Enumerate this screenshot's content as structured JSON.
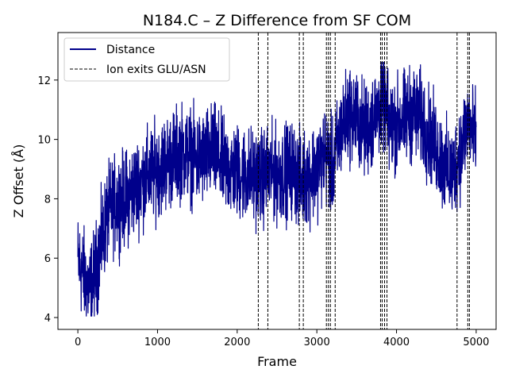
{
  "chart_data": {
    "type": "line",
    "title": "N184.C – Z Difference from SF COM",
    "xlabel": "Frame",
    "ylabel": "Z Offset (Å)",
    "xlim": [
      -250,
      5250
    ],
    "ylim": [
      3.6,
      13.6
    ],
    "xticks": [
      0,
      1000,
      2000,
      3000,
      4000,
      5000
    ],
    "yticks": [
      4,
      6,
      8,
      10,
      12
    ],
    "grid": false,
    "legend_position": "upper-left",
    "series": [
      {
        "name": "Distance",
        "color": "#00008b",
        "style": "solid",
        "trend_points": [
          [
            0,
            5.9
          ],
          [
            50,
            5.6
          ],
          [
            100,
            5.2
          ],
          [
            150,
            4.9
          ],
          [
            200,
            5.3
          ],
          [
            250,
            5.9
          ],
          [
            300,
            6.6
          ],
          [
            350,
            7.2
          ],
          [
            400,
            7.6
          ],
          [
            500,
            7.9
          ],
          [
            600,
            8.0
          ],
          [
            700,
            8.3
          ],
          [
            800,
            8.6
          ],
          [
            900,
            8.8
          ],
          [
            1000,
            9.0
          ],
          [
            1100,
            9.2
          ],
          [
            1200,
            9.4
          ],
          [
            1300,
            9.6
          ],
          [
            1400,
            9.5
          ],
          [
            1500,
            9.3
          ],
          [
            1600,
            9.4
          ],
          [
            1700,
            9.6
          ],
          [
            1800,
            9.2
          ],
          [
            1900,
            9.0
          ],
          [
            2000,
            8.9
          ],
          [
            2100,
            8.8
          ],
          [
            2200,
            8.8
          ],
          [
            2300,
            8.7
          ],
          [
            2400,
            8.9
          ],
          [
            2500,
            8.8
          ],
          [
            2600,
            8.9
          ],
          [
            2700,
            9.0
          ],
          [
            2800,
            8.6
          ],
          [
            2900,
            8.8
          ],
          [
            3000,
            9.0
          ],
          [
            3100,
            9.5
          ],
          [
            3200,
            9.0
          ],
          [
            3300,
            10.3
          ],
          [
            3400,
            10.9
          ],
          [
            3500,
            10.7
          ],
          [
            3600,
            10.3
          ],
          [
            3700,
            10.6
          ],
          [
            3800,
            11.2
          ],
          [
            3850,
            11.3
          ],
          [
            3900,
            10.4
          ],
          [
            4000,
            10.5
          ],
          [
            4100,
            10.7
          ],
          [
            4200,
            10.9
          ],
          [
            4300,
            10.7
          ],
          [
            4400,
            10.2
          ],
          [
            4500,
            9.7
          ],
          [
            4600,
            9.1
          ],
          [
            4700,
            8.8
          ],
          [
            4800,
            9.6
          ],
          [
            4900,
            10.7
          ],
          [
            4950,
            10.2
          ],
          [
            5000,
            9.9
          ]
        ],
        "noise_amplitude": 1.1,
        "n_frames": 5000
      }
    ],
    "vlines": {
      "name": "Ion exits GLU/ASN",
      "color": "#000000",
      "style": "dashed",
      "x": [
        2265,
        2385,
        2780,
        2830,
        3120,
        3145,
        3170,
        3230,
        3800,
        3820,
        3850,
        3880,
        4760,
        4895,
        4915
      ]
    }
  }
}
